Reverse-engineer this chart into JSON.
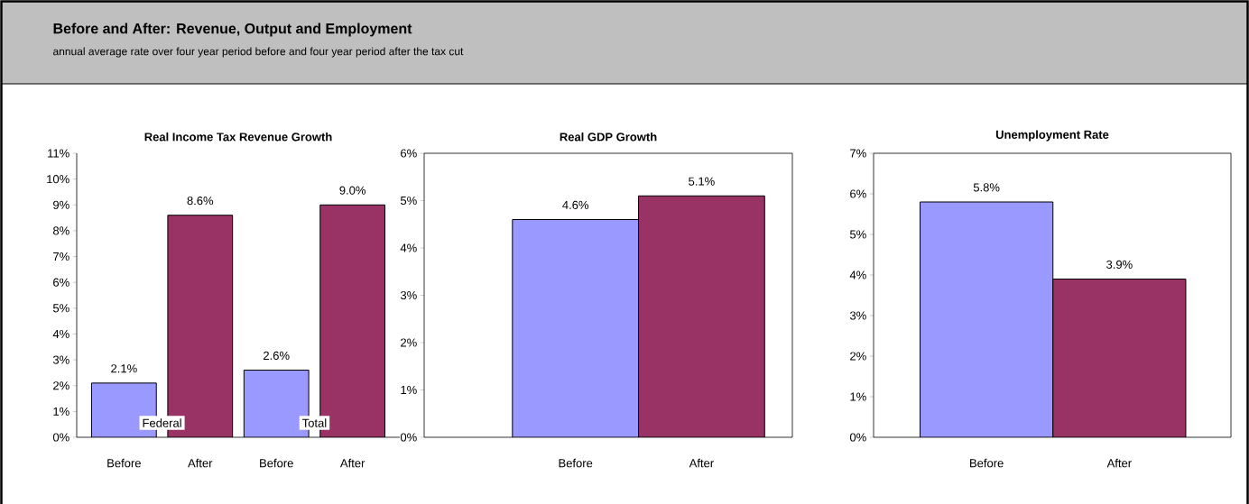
{
  "chart_data": [
    {
      "type": "other",
      "title": "Before and After:  Revenue, Output and Employment",
      "subtitle": "annual average rate over four year period before and four year period after the tax cut"
    },
    {
      "type": "bar",
      "title": "Real Income Tax Revenue Growth",
      "categories": [
        "Before",
        "After",
        "Before",
        "After"
      ],
      "values": [
        2.1,
        8.6,
        2.6,
        9.0
      ],
      "colors": [
        "#9999ff",
        "#993366",
        "#9999ff",
        "#993366"
      ],
      "value_labels": [
        "2.1%",
        "8.6%",
        "2.6%",
        "9.0%"
      ],
      "annotations": [
        "Federal",
        "Total"
      ],
      "ylim": [
        0,
        11
      ],
      "yticks": [
        {
          "value": 0,
          "label": "0%"
        },
        {
          "value": 1,
          "label": "1%"
        },
        {
          "value": 2,
          "label": "2%"
        },
        {
          "value": 3,
          "label": "3%"
        },
        {
          "value": 4,
          "label": "4%"
        },
        {
          "value": 5,
          "label": "5%"
        },
        {
          "value": 6,
          "label": "6%"
        },
        {
          "value": 7,
          "label": "7%"
        },
        {
          "value": 8,
          "label": "8%"
        },
        {
          "value": 9,
          "label": "9%"
        },
        {
          "value": 10,
          "label": "10%"
        },
        {
          "value": 11,
          "label": "11%"
        }
      ],
      "grid": false
    },
    {
      "type": "bar",
      "title": "Real GDP Growth",
      "categories": [
        "Before",
        "After"
      ],
      "values": [
        4.6,
        5.1
      ],
      "colors": [
        "#9999ff",
        "#993366"
      ],
      "value_labels": [
        "4.6%",
        "5.1%"
      ],
      "ylim": [
        0,
        6
      ],
      "yticks": [
        {
          "value": 0,
          "label": "0%"
        },
        {
          "value": 1,
          "label": "1%"
        },
        {
          "value": 2,
          "label": "2%"
        },
        {
          "value": 3,
          "label": "3%"
        },
        {
          "value": 4,
          "label": "4%"
        },
        {
          "value": 5,
          "label": "5%"
        },
        {
          "value": 6,
          "label": "6%"
        }
      ],
      "grid": false
    },
    {
      "type": "bar",
      "title": "Unemployment Rate",
      "categories": [
        "Before",
        "After"
      ],
      "values": [
        5.8,
        3.9
      ],
      "colors": [
        "#9999ff",
        "#993366"
      ],
      "value_labels": [
        "5.8%",
        "3.9%"
      ],
      "ylim": [
        0,
        7
      ],
      "yticks": [
        {
          "value": 0,
          "label": "0%"
        },
        {
          "value": 1,
          "label": "1%"
        },
        {
          "value": 2,
          "label": "2%"
        },
        {
          "value": 3,
          "label": "3%"
        },
        {
          "value": 4,
          "label": "4%"
        },
        {
          "value": 5,
          "label": "5%"
        },
        {
          "value": 6,
          "label": "6%"
        },
        {
          "value": 7,
          "label": "7%"
        }
      ],
      "grid": false
    }
  ]
}
